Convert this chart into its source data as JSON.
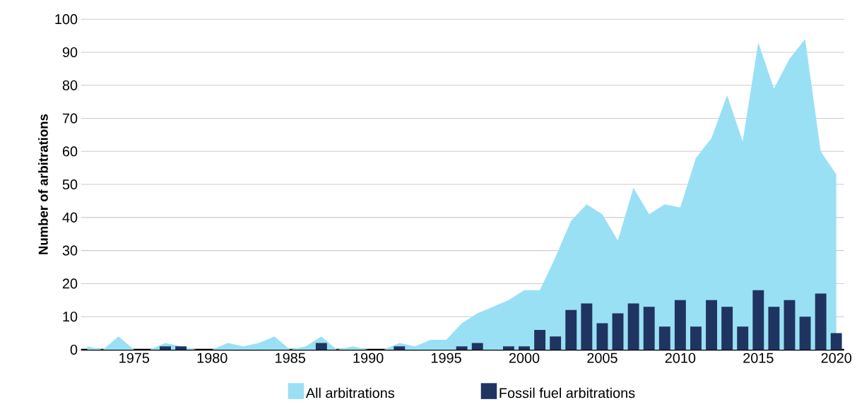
{
  "chart_data": {
    "type": "area",
    "ylabel": "Number of arbitrations",
    "x": [
      1972,
      1973,
      1974,
      1975,
      1976,
      1977,
      1978,
      1979,
      1980,
      1981,
      1982,
      1983,
      1984,
      1985,
      1986,
      1987,
      1988,
      1989,
      1990,
      1991,
      1992,
      1993,
      1994,
      1995,
      1996,
      1997,
      1998,
      1999,
      2000,
      2001,
      2002,
      2003,
      2004,
      2005,
      2006,
      2007,
      2008,
      2009,
      2010,
      2011,
      2012,
      2013,
      2014,
      2015,
      2016,
      2017,
      2018,
      2019,
      2020
    ],
    "series": [
      {
        "name": "All arbitrations",
        "color": "#9ae0f4",
        "values": [
          1,
          0,
          4,
          0,
          0,
          2,
          1,
          0,
          0,
          2,
          1,
          2,
          4,
          0,
          1,
          4,
          0,
          1,
          0,
          0,
          2,
          1,
          3,
          3,
          8,
          11,
          13,
          15,
          18,
          18,
          28,
          39,
          44,
          41,
          33,
          49,
          41,
          44,
          43,
          58,
          64,
          77,
          63,
          93,
          79,
          88,
          94,
          60,
          53
        ]
      },
      {
        "name": "Fossil fuel arbitrations",
        "type": "bar",
        "color": "#1f3461",
        "values": [
          0,
          0,
          0,
          0,
          0,
          1,
          1,
          0,
          0,
          0,
          0,
          0,
          0,
          0,
          0,
          2,
          0,
          0,
          0,
          0,
          1,
          0,
          0,
          0,
          1,
          2,
          0,
          1,
          1,
          6,
          4,
          12,
          14,
          8,
          11,
          14,
          13,
          7,
          15,
          7,
          15,
          13,
          7,
          18,
          13,
          15,
          10,
          17,
          5
        ]
      }
    ],
    "xlim": [
      1971.6,
      2020.5
    ],
    "xticks": [
      1975,
      1980,
      1985,
      1990,
      1995,
      2000,
      2005,
      2010,
      2015,
      2020
    ],
    "ylim": [
      0,
      100
    ],
    "yticks": [
      0,
      10,
      20,
      30,
      40,
      50,
      60,
      70,
      80,
      90,
      100
    ],
    "grid": "y",
    "legend": "bottom"
  }
}
